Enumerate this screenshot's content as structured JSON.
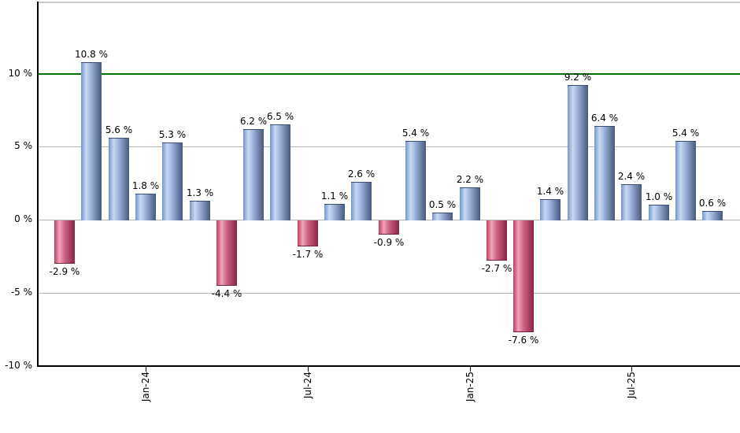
{
  "chart_data": {
    "type": "bar",
    "title": "",
    "xlabel": "",
    "ylabel": "",
    "ylim": [
      -10,
      14.8
    ],
    "grid": "horizontal",
    "legend": "none",
    "bars": [
      {
        "value": -2.9,
        "label": "-2.9 %"
      },
      {
        "value": 10.8,
        "label": "10.8 %"
      },
      {
        "value": 5.6,
        "label": "5.6 %"
      },
      {
        "value": 1.8,
        "label": "1.8 %"
      },
      {
        "value": 5.3,
        "label": "5.3 %"
      },
      {
        "value": 1.3,
        "label": "1.3 %"
      },
      {
        "value": -4.4,
        "label": "-4.4 %"
      },
      {
        "value": 6.2,
        "label": "6.2 %"
      },
      {
        "value": 6.5,
        "label": "6.5 %"
      },
      {
        "value": -1.7,
        "label": "-1.7 %"
      },
      {
        "value": 1.1,
        "label": "1.1 %"
      },
      {
        "value": 2.6,
        "label": "2.6 %"
      },
      {
        "value": -0.9,
        "label": "-0.9 %"
      },
      {
        "value": 5.4,
        "label": "5.4 %"
      },
      {
        "value": 0.5,
        "label": "0.5 %"
      },
      {
        "value": 2.2,
        "label": "2.2 %"
      },
      {
        "value": -2.7,
        "label": "-2.7 %"
      },
      {
        "value": -7.6,
        "label": "-7.6 %"
      },
      {
        "value": 1.4,
        "label": "1.4 %"
      },
      {
        "value": 9.2,
        "label": "9.2 %"
      },
      {
        "value": 6.4,
        "label": "6.4 %"
      },
      {
        "value": 2.4,
        "label": "2.4 %"
      },
      {
        "value": 1.0,
        "label": "1.0 %"
      },
      {
        "value": 5.4,
        "label": "5.4 %"
      },
      {
        "value": 0.6,
        "label": "0.6 %"
      }
    ],
    "x_axis": {
      "ticks": [
        {
          "label": "Jan-24",
          "bar_index": 3
        },
        {
          "label": "Jul-24",
          "bar_index": 9
        },
        {
          "label": "Jan-25",
          "bar_index": 15
        },
        {
          "label": "Jul-25",
          "bar_index": 21
        }
      ]
    },
    "y_axis": {
      "ticks": [
        {
          "value": 10,
          "label": "10 %"
        },
        {
          "value": 5,
          "label": "5 %"
        },
        {
          "value": 0,
          "label": "0 %"
        },
        {
          "value": -5,
          "label": "-5 %"
        },
        {
          "value": -10,
          "label": "-10 %"
        }
      ],
      "gridline_values": [
        5,
        0,
        -5
      ]
    },
    "reference_line": {
      "value": 10,
      "color": "#007000"
    },
    "colors": {
      "positive_mid": "#7495cf",
      "positive_light": "#cad8f0",
      "positive_dark": "#46597e",
      "negative_mid": "#bf3a60",
      "negative_light": "#f0a4ba",
      "negative_dark": "#8c2144",
      "reference_line": "#007000",
      "gridline": "#b3b3b3",
      "axis": "#000000",
      "top_border": "#c9c9c9"
    }
  }
}
